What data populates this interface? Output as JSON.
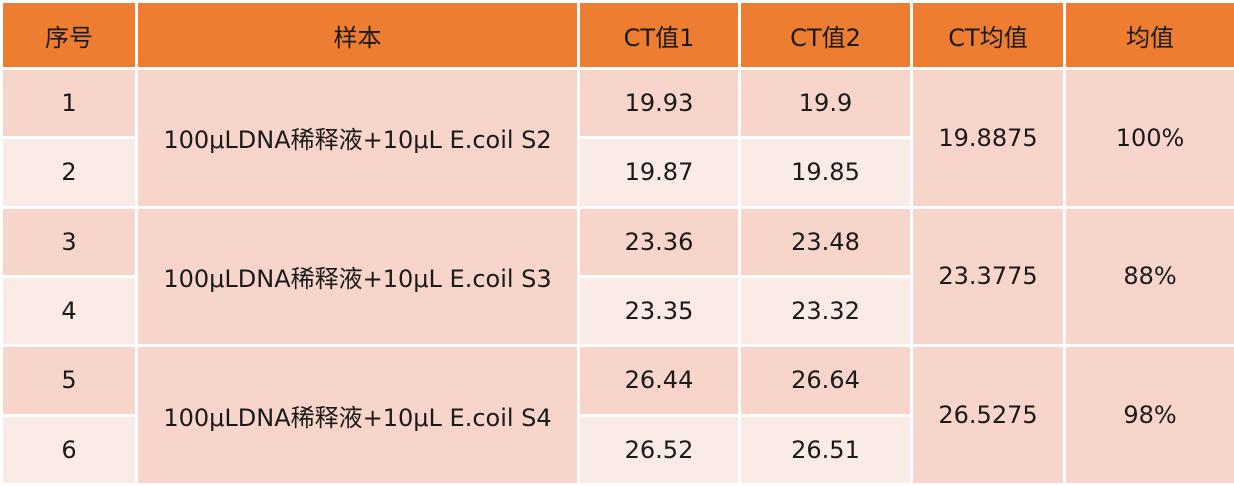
{
  "table": {
    "header": [
      "序号",
      "样本",
      "CT值1",
      "CT值2",
      "CT均值",
      "均值"
    ],
    "groups": [
      {
        "sample": "100μLDNA稀释液+10μL E.coil S2",
        "ct_mean": "19.8875",
        "mean": "100%",
        "rows": [
          {
            "index": "1",
            "ct1": "19.93",
            "ct2": "19.9"
          },
          {
            "index": "2",
            "ct1": "19.87",
            "ct2": "19.85"
          }
        ]
      },
      {
        "sample": "100μLDNA稀释液+10μL E.coil S3",
        "ct_mean": "23.3775",
        "mean": "88%",
        "rows": [
          {
            "index": "3",
            "ct1": "23.36",
            "ct2": "23.48"
          },
          {
            "index": "4",
            "ct1": "23.35",
            "ct2": "23.32"
          }
        ]
      },
      {
        "sample": "100μLDNA稀释液+10μL E.coil S4",
        "ct_mean": "26.5275",
        "mean": "98%",
        "rows": [
          {
            "index": "5",
            "ct1": "26.44",
            "ct2": "26.64"
          },
          {
            "index": "6",
            "ct1": "26.52",
            "ct2": "26.51"
          }
        ]
      }
    ]
  }
}
